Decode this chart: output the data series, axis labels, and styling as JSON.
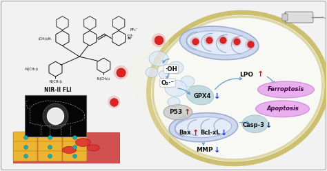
{
  "bg_color": "#ebebeb",
  "cell_outline_color": "#ccc070",
  "cell_fill_color": "#f8f8f5",
  "up_arrow_color": "#cc1111",
  "down_arrow_color": "#1133bb",
  "ferroptosis_fill": "#e8aaee",
  "ferroptosis_edge": "#cc88dd",
  "apoptosis_fill": "#e8aaee",
  "apoptosis_edge": "#cc88dd",
  "mito_fill": "#ccd8f0",
  "mito_edge": "#99aacc",
  "red_dot_color": "#dd2222",
  "vesicle_fill": "#dde8f5",
  "vesicle_edge": "#99bbdd",
  "arrow_color": "#6699cc",
  "nir_box_fill": "#050505",
  "p53_fill": "#cccccc",
  "p53_edge": "#999999",
  "struct_color": "#111111",
  "tissue_red": "#cc3333",
  "tissue_yellow": "#f0c030",
  "tissue_teal": "#22aaaa",
  "labels": {
    "NIR_FLI": "NIR-II FLI",
    "OH": "·OH",
    "O2": "O₂·⁻",
    "GPX4": "GPX4",
    "LPO": "LPO",
    "P53": "P53",
    "Bax": "Bax",
    "BclxL": "Bcl-xL",
    "Casp3": "Casp-3",
    "MMP": "MMP",
    "Ferroptosis": "Ferroptosis",
    "Apoptosis": "Apoptosis",
    "PF6": "PF₆⁻"
  }
}
